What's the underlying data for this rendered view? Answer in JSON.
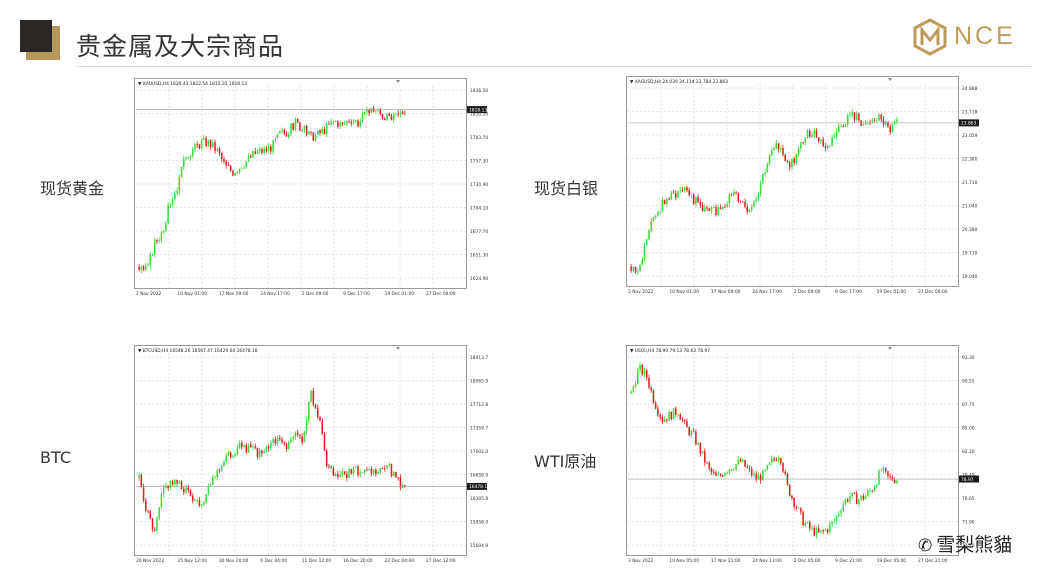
{
  "header": {
    "title": "贵金属及大宗商品",
    "logo_text": "NCE"
  },
  "watermark": {
    "text": "雪梨熊貓"
  },
  "charts": [
    {
      "label": "现货黄金",
      "info": "XAUUSD,H4  1820.43 1822.54 1815.31 1818.13",
      "price_label": "1818.13",
      "y_ticks": [
        "1836.50",
        "1810.10",
        "1783.70",
        "1757.30",
        "1730.90",
        "1704.10",
        "1677.70",
        "1651.30",
        "1624.90"
      ],
      "x_ticks": [
        "2 Nov 2022",
        "10 Nov 01:00",
        "17 Nov 09:00",
        "24 Nov 17:00",
        "2 Dec 09:00",
        "9 Dec 17:00",
        "19 Dec 01:00",
        "27 Dec 09:00"
      ],
      "ylim": [
        1612,
        1846
      ],
      "last": 1818.13,
      "path": [
        1632,
        1628,
        1660,
        1675,
        1710,
        1730,
        1765,
        1772,
        1780,
        1779,
        1770,
        1752,
        1745,
        1752,
        1760,
        1768,
        1770,
        1775,
        1790,
        1792,
        1803,
        1795,
        1786,
        1790,
        1797,
        1805,
        1800,
        1808,
        1803,
        1812,
        1820,
        1812,
        1806,
        1810,
        1818
      ]
    },
    {
      "label": "现货白银",
      "info": "XAGUSD,H4  24.039 24.114 23.784 23.863",
      "price_label": "23.863",
      "y_ticks": [
        "24.888",
        "23.738",
        "23.059",
        "22.380",
        "21.710",
        "21.040",
        "20.380",
        "19.710",
        "19.040"
      ],
      "x_ticks": [
        "2 Nov 2022",
        "10 Nov 01:00",
        "17 Nov 09:00",
        "24 Nov 17:00",
        "2 Dec 09:00",
        "9 Dec 17:00",
        "19 Dec 01:00",
        "27 Dec 09:00"
      ],
      "ylim": [
        18.8,
        25.1
      ],
      "last": 23.863,
      "path": [
        19.3,
        19.1,
        20.2,
        20.9,
        21.3,
        21.5,
        21.7,
        21.9,
        21.4,
        21.2,
        21.0,
        21.1,
        21.3,
        21.6,
        21.4,
        21.1,
        21.5,
        22.3,
        22.9,
        23.2,
        22.5,
        22.7,
        23.3,
        23.6,
        23.4,
        23.0,
        23.5,
        23.8,
        24.1,
        24.0,
        23.7,
        23.9,
        24.0,
        23.6,
        23.86
      ]
    },
    {
      "label": "BTC",
      "info": "BTCUSD,H4  16548.26 16567.47 16429.64 16478.18",
      "price_label": "16478.18",
      "y_ticks": [
        "18413.70",
        "18065.95",
        "17712.85",
        "17359.75",
        "17002.00",
        "16658.90",
        "16305.80",
        "15958.05",
        "15604.95"
      ],
      "x_ticks": [
        "20 Nov 2022",
        "25 Nov 12:00",
        "30 Nov 20:00",
        "6 Dec 04:00",
        "11 Dec 12:00",
        "16 Dec 20:00",
        "22 Dec 04:00",
        "27 Dec 12:00"
      ],
      "ylim": [
        15500,
        18500
      ],
      "last": 16478.18,
      "path": [
        16600,
        16100,
        15750,
        16400,
        16550,
        16500,
        16420,
        16300,
        16200,
        16550,
        16700,
        16900,
        16980,
        17100,
        17050,
        17000,
        16950,
        17200,
        17150,
        17100,
        17250,
        17200,
        17900,
        17500,
        16800,
        16600,
        16650,
        16700,
        16720,
        16650,
        16700,
        16680,
        16750,
        16550,
        16478
      ]
    },
    {
      "label": "WTI原油",
      "info": "USOil,H4  78.90 79.13 78.63 78.97",
      "price_label": "78.97",
      "y_ticks": [
        "93.30",
        "90.55",
        "87.75",
        "85.00",
        "82.20",
        "79.45",
        "76.65",
        "73.90",
        "71.10"
      ],
      "x_ticks": [
        "3 Nov 2022",
        "10 Nov 05:00",
        "17 Nov 21:00",
        "24 Nov 13:00",
        "2 Dec 05:00",
        "9 Dec 21:00",
        "19 Dec 05:00",
        "27 Dec 21:00"
      ],
      "ylim": [
        70.5,
        93.8
      ],
      "last": 78.97,
      "path": [
        89,
        92,
        91,
        88,
        86,
        86.5,
        87,
        85,
        84,
        82,
        80,
        79,
        80,
        80.5,
        81,
        80,
        79,
        79.5,
        81,
        82,
        78,
        76,
        74,
        73,
        72.5,
        73,
        74,
        76,
        77,
        76.5,
        77,
        78,
        80,
        79,
        78.97
      ]
    }
  ]
}
